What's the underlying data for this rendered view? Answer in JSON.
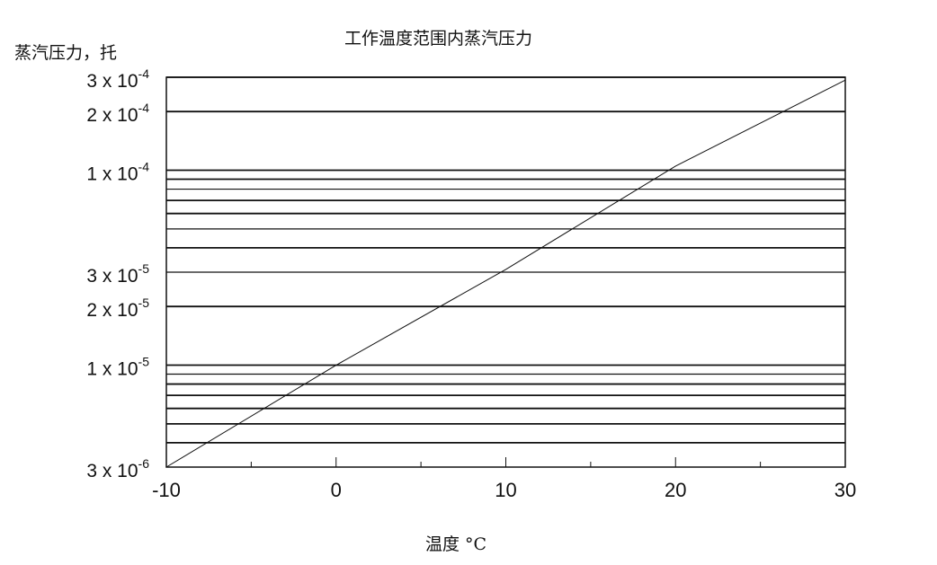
{
  "chart_data": {
    "type": "line",
    "title": "工作温度范围内蒸汽压力",
    "xlabel": "温度 °C",
    "ylabel": "蒸汽压力，托",
    "xlim": [
      -10,
      30
    ],
    "ylim": [
      3e-06,
      0.0003
    ],
    "yscale": "log",
    "grid": "horizontal",
    "x_ticks": [
      -10,
      0,
      10,
      20,
      30
    ],
    "x_tick_labels": [
      "-10",
      "0",
      "10",
      "20",
      "30"
    ],
    "x_minor_ticks": [
      -5,
      5,
      15,
      25
    ],
    "y_tick_labels": [
      {
        "value": 0.0003,
        "mantissa": "3 x 10",
        "exp": "-4"
      },
      {
        "value": 0.0002,
        "mantissa": "2 x 10",
        "exp": "-4"
      },
      {
        "value": 0.0001,
        "mantissa": "1 x 10",
        "exp": "-4"
      },
      {
        "value": 3e-05,
        "mantissa": "3 x 10",
        "exp": "-5"
      },
      {
        "value": 2e-05,
        "mantissa": "2 x 10",
        "exp": "-5"
      },
      {
        "value": 1e-05,
        "mantissa": "1 x 10",
        "exp": "-5"
      },
      {
        "value": 3e-06,
        "mantissa": "3 x 10",
        "exp": "-6"
      }
    ],
    "gridlines": [
      4e-06,
      5e-06,
      6e-06,
      7e-06,
      8e-06,
      9e-06,
      1e-05,
      2e-05,
      3e-05,
      4e-05,
      5e-05,
      6e-05,
      7e-05,
      8e-05,
      9e-05,
      0.0001,
      0.0002,
      0.0003
    ],
    "series": [
      {
        "x": [
          -10,
          0,
          10,
          20,
          30
        ],
        "y": [
          3e-06,
          1e-05,
          3.1e-05,
          0.000105,
          0.00029
        ]
      }
    ]
  }
}
